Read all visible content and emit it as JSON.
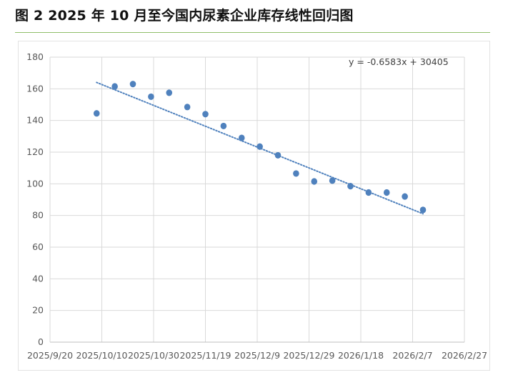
{
  "figure": {
    "title": "图 2 2025 年 10 月至今国内尿素企业库存线性回归图"
  },
  "chart_data": {
    "type": "scatter",
    "x_ticks": [
      "2025/9/20",
      "2025/10/10",
      "2025/10/30",
      "2025/11/19",
      "2025/12/9",
      "2025/12/29",
      "2026/1/18",
      "2026/2/7",
      "2026/2/27"
    ],
    "y_ticks": [
      "0",
      "20",
      "40",
      "60",
      "80",
      "100",
      "120",
      "140",
      "160",
      "180"
    ],
    "xlim": [
      "2025/9/20",
      "2026/2/27"
    ],
    "ylim": [
      0,
      180
    ],
    "grid": true,
    "series": [
      {
        "marker_color": "#4f81bd",
        "points": [
          {
            "x": "2025/10/8",
            "y": 144.5
          },
          {
            "x": "2025/10/15",
            "y": 161.5
          },
          {
            "x": "2025/10/22",
            "y": 163
          },
          {
            "x": "2025/10/29",
            "y": 155
          },
          {
            "x": "2025/11/5",
            "y": 157.5
          },
          {
            "x": "2025/11/12",
            "y": 148.5
          },
          {
            "x": "2025/11/19",
            "y": 144
          },
          {
            "x": "2025/11/26",
            "y": 136.5
          },
          {
            "x": "2025/12/3",
            "y": 129
          },
          {
            "x": "2025/12/10",
            "y": 123.5
          },
          {
            "x": "2025/12/17",
            "y": 118
          },
          {
            "x": "2025/12/24",
            "y": 106.5
          },
          {
            "x": "2025/12/31",
            "y": 101.5
          },
          {
            "x": "2026/1/7",
            "y": 102
          },
          {
            "x": "2026/1/14",
            "y": 98.5
          },
          {
            "x": "2026/1/21",
            "y": 94.5
          },
          {
            "x": "2026/1/28",
            "y": 94.5
          },
          {
            "x": "2026/2/4",
            "y": 92
          },
          {
            "x": "2026/2/11",
            "y": 83.5
          }
        ]
      }
    ],
    "trendline": {
      "style": "dotted",
      "color": "#4f81bd",
      "slope": -0.6583,
      "intercept": 30405,
      "x_unit": "Excel date serial",
      "from": "2025/10/8",
      "to": "2026/2/11",
      "equation": "y = -0.6583x + 30405"
    }
  }
}
